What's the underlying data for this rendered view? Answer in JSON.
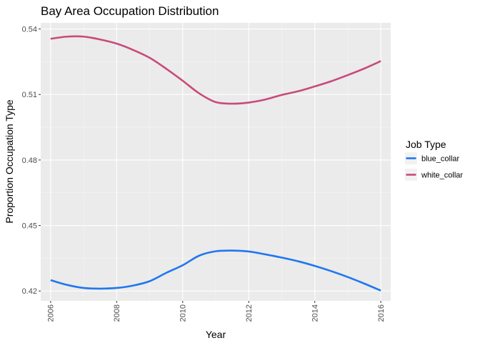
{
  "chart_data": {
    "type": "line",
    "title": "Bay Area Occupation Distribution",
    "xlabel": "Year",
    "ylabel": "Proportion Occupation Type",
    "x": [
      2006,
      2006.5,
      2007,
      2007.5,
      2008,
      2008.5,
      2009,
      2009.5,
      2010,
      2010.5,
      2011,
      2011.5,
      2012,
      2012.5,
      2013,
      2013.5,
      2014,
      2014.5,
      2015,
      2015.5,
      2016
    ],
    "xticks": [
      "2006",
      "2008",
      "2010",
      "2012",
      "2014",
      "2016"
    ],
    "xtick_values": [
      2006,
      2008,
      2010,
      2012,
      2014,
      2016
    ],
    "yticks": [
      "0.42",
      "0.45",
      "0.48",
      "0.51",
      "0.54"
    ],
    "ytick_values": [
      0.42,
      0.45,
      0.48,
      0.51,
      0.54
    ],
    "xlim": [
      2005.7,
      2016.3
    ],
    "ylim": [
      0.4155,
      0.5428
    ],
    "grid": true,
    "legend_title": "Job Type",
    "legend_position": "right",
    "series": [
      {
        "name": "blue_collar",
        "color": "#1f77f0",
        "values": [
          0.425,
          0.4228,
          0.4214,
          0.4211,
          0.4214,
          0.4225,
          0.4245,
          0.4283,
          0.4318,
          0.4362,
          0.4382,
          0.4385,
          0.4381,
          0.4368,
          0.4353,
          0.4336,
          0.4315,
          0.4291,
          0.4264,
          0.4234,
          0.4202
        ]
      },
      {
        "name": "white_collar",
        "color": "#c94a7b",
        "values": [
          0.5355,
          0.5365,
          0.5365,
          0.5352,
          0.5333,
          0.5304,
          0.5268,
          0.5218,
          0.5163,
          0.5105,
          0.5065,
          0.5058,
          0.5063,
          0.5077,
          0.5098,
          0.5115,
          0.5137,
          0.5161,
          0.5189,
          0.5219,
          0.5253
        ]
      }
    ]
  }
}
